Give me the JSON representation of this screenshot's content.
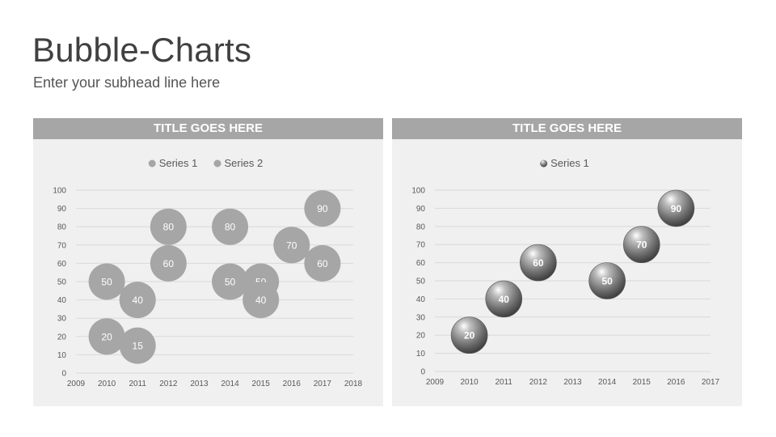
{
  "slide": {
    "title": "Bubble-Charts",
    "subtitle": "Enter your subhead line here"
  },
  "chart_data": [
    {
      "type": "scatter",
      "variant": "bubble",
      "title": "TITLE GOES HERE",
      "legend_position": "top",
      "grid": true,
      "x_ticks": [
        "2009",
        "2010",
        "2011",
        "2012",
        "2013",
        "2014",
        "2015",
        "2016",
        "2017",
        "2018"
      ],
      "y_ticks": [
        "0",
        "10",
        "20",
        "30",
        "40",
        "50",
        "60",
        "70",
        "80",
        "90",
        "100"
      ],
      "xlim": [
        2009,
        2018
      ],
      "ylim": [
        0,
        100
      ],
      "series": [
        {
          "name": "Series 1",
          "color": "#a6a6a6",
          "points": [
            {
              "x": 2010,
              "y": 50,
              "label": "50"
            },
            {
              "x": 2011,
              "y": 40,
              "label": "40"
            },
            {
              "x": 2012,
              "y": 60,
              "label": "60"
            },
            {
              "x": 2014,
              "y": 50,
              "label": "50"
            },
            {
              "x": 2015,
              "y": 50,
              "label": "50"
            },
            {
              "x": 2016,
              "y": 70,
              "label": "70"
            },
            {
              "x": 2017,
              "y": 90,
              "label": "90"
            }
          ]
        },
        {
          "name": "Series 2",
          "color": "#a6a6a6",
          "points": [
            {
              "x": 2010,
              "y": 20,
              "label": "20"
            },
            {
              "x": 2011,
              "y": 15,
              "label": "15"
            },
            {
              "x": 2012,
              "y": 80,
              "label": "80"
            },
            {
              "x": 2014,
              "y": 80,
              "label": "80"
            },
            {
              "x": 2015,
              "y": 40,
              "label": "40"
            },
            {
              "x": 2017,
              "y": 60,
              "label": "60"
            }
          ]
        }
      ]
    },
    {
      "type": "scatter",
      "variant": "bubble-3d",
      "title": "TITLE GOES HERE",
      "legend_position": "top",
      "grid": true,
      "x_ticks": [
        "2009",
        "2010",
        "2011",
        "2012",
        "2013",
        "2014",
        "2015",
        "2016",
        "2017"
      ],
      "y_ticks": [
        "0",
        "10",
        "20",
        "30",
        "40",
        "50",
        "60",
        "70",
        "80",
        "90",
        "100"
      ],
      "xlim": [
        2009,
        2017
      ],
      "ylim": [
        0,
        100
      ],
      "series": [
        {
          "name": "Series 1",
          "color": "#7f7f7f",
          "points": [
            {
              "x": 2010,
              "y": 20,
              "label": "20"
            },
            {
              "x": 2011,
              "y": 40,
              "label": "40"
            },
            {
              "x": 2012,
              "y": 60,
              "label": "60"
            },
            {
              "x": 2014,
              "y": 50,
              "label": "50"
            },
            {
              "x": 2015,
              "y": 70,
              "label": "70"
            },
            {
              "x": 2016,
              "y": 90,
              "label": "90"
            }
          ]
        }
      ]
    }
  ]
}
